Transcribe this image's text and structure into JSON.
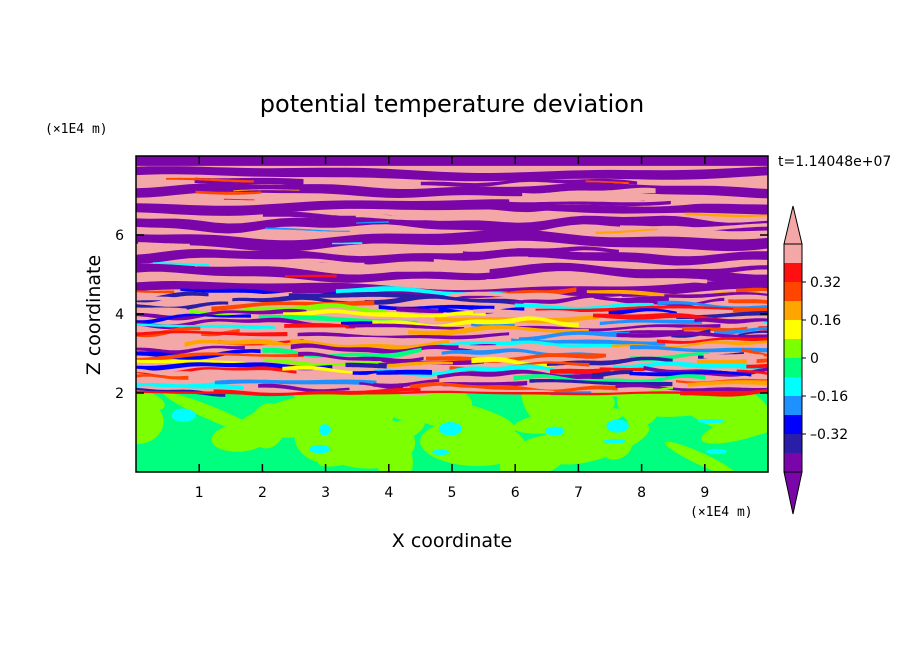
{
  "chart_data": {
    "type": "heatmap",
    "title": "potential temperature deviation",
    "xlabel": "X coordinate",
    "ylabel": "Z coordinate",
    "x_unit": "(×1E4 m)",
    "z_unit": "(×1E4 m)",
    "time_label": "t=1.14048e+07",
    "xlim": [
      0,
      10
    ],
    "ylim": [
      0,
      8
    ],
    "x_ticks": [
      "1",
      "2",
      "3",
      "4",
      "5",
      "6",
      "7",
      "8",
      "9"
    ],
    "y_ticks": [
      "2",
      "4",
      "6"
    ],
    "colorbar": {
      "levels": [
        -0.48,
        -0.4,
        -0.32,
        -0.24,
        -0.16,
        -0.08,
        0,
        0.08,
        0.16,
        0.24,
        0.32,
        0.4,
        0.48
      ],
      "colors": [
        "#7a06a9",
        "#2a1da8",
        "#0000ff",
        "#1e90ff",
        "#00ffff",
        "#00ff7f",
        "#7cff00",
        "#ffff00",
        "#ffa500",
        "#ff4500",
        "#ff1010",
        "#f4a7a7"
      ],
      "under_color": "#7a06a9",
      "over_color": "#f4a7a7",
      "labels": [
        "0.32",
        "0.16",
        "0",
        "–0.16",
        "–0.32"
      ]
    }
  }
}
